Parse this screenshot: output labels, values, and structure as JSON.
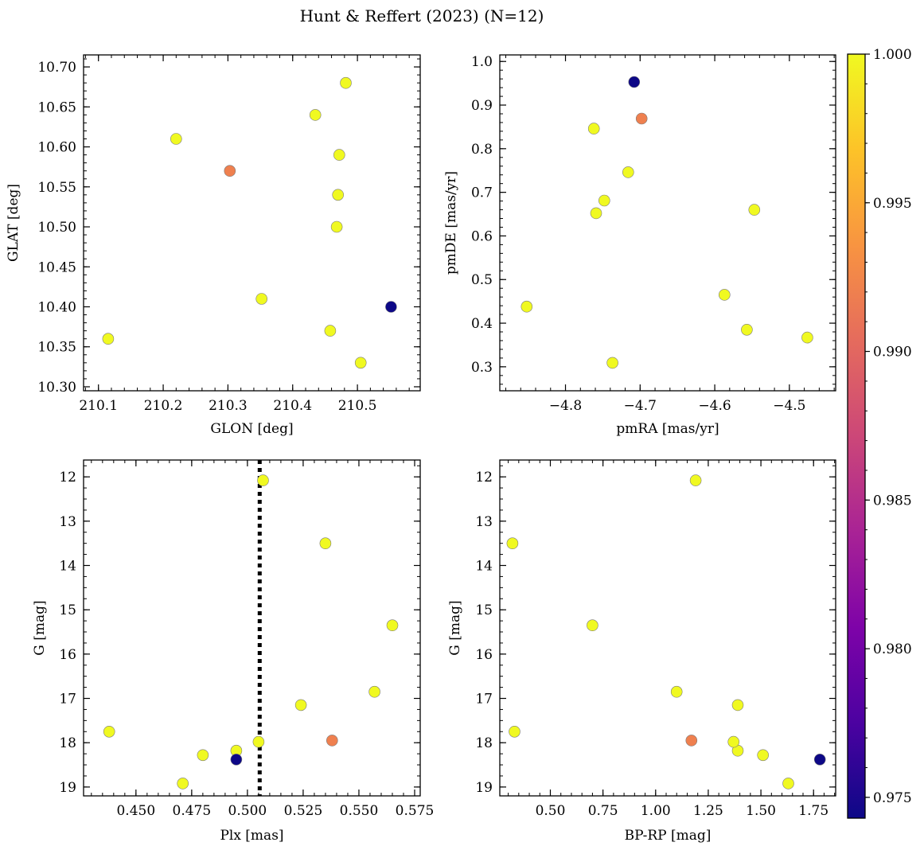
{
  "figure": {
    "title": "Hunt & Reffert (2023) (N=12)"
  },
  "colormap": {
    "name": "plasma",
    "min": 0.9743,
    "max": 1.0,
    "ticks": [
      0.975,
      0.98,
      0.985,
      0.99,
      0.995,
      1.0
    ],
    "tick_labels": [
      "0.975",
      "0.980",
      "0.985",
      "0.990",
      "0.995",
      "1.000"
    ]
  },
  "stars": [
    {
      "glon": 210.115,
      "glat": 10.36,
      "pmra": -4.852,
      "pmde": 0.438,
      "plx": 0.438,
      "g": 17.75,
      "bprp": 0.33,
      "prob": 1.0
    },
    {
      "glon": 210.22,
      "glat": 10.61,
      "pmra": -4.762,
      "pmde": 0.846,
      "plx": 0.565,
      "g": 15.35,
      "bprp": 0.7,
      "prob": 1.0
    },
    {
      "glon": 210.303,
      "glat": 10.57,
      "pmra": -4.698,
      "pmde": 0.869,
      "plx": 0.538,
      "g": 17.95,
      "bprp": 1.17,
      "prob": 0.992
    },
    {
      "glon": 210.352,
      "glat": 10.41,
      "pmra": -4.737,
      "pmde": 0.309,
      "plx": 0.471,
      "g": 18.92,
      "bprp": 1.63,
      "prob": 1.0
    },
    {
      "glon": 210.435,
      "glat": 10.64,
      "pmra": -4.716,
      "pmde": 0.746,
      "plx": 0.507,
      "g": 12.08,
      "bprp": 1.19,
      "prob": 1.0
    },
    {
      "glon": 210.458,
      "glat": 10.37,
      "pmra": -4.557,
      "pmde": 0.385,
      "plx": 0.495,
      "g": 18.18,
      "bprp": 1.39,
      "prob": 1.0
    },
    {
      "glon": 210.468,
      "glat": 10.5,
      "pmra": -4.759,
      "pmde": 0.652,
      "plx": 0.524,
      "g": 17.15,
      "bprp": 1.39,
      "prob": 1.0
    },
    {
      "glon": 210.47,
      "glat": 10.54,
      "pmra": -4.748,
      "pmde": 0.681,
      "plx": 0.505,
      "g": 17.98,
      "bprp": 1.37,
      "prob": 1.0
    },
    {
      "glon": 210.472,
      "glat": 10.59,
      "pmra": -4.587,
      "pmde": 0.465,
      "plx": 0.557,
      "g": 16.85,
      "bprp": 1.1,
      "prob": 1.0
    },
    {
      "glon": 210.482,
      "glat": 10.68,
      "pmra": -4.547,
      "pmde": 0.66,
      "plx": 0.535,
      "g": 13.5,
      "bprp": 0.32,
      "prob": 1.0
    },
    {
      "glon": 210.505,
      "glat": 10.33,
      "pmra": -4.476,
      "pmde": 0.367,
      "plx": 0.48,
      "g": 18.28,
      "bprp": 1.51,
      "prob": 1.0
    },
    {
      "glon": 210.552,
      "glat": 10.4,
      "pmra": -4.708,
      "pmde": 0.953,
      "plx": 0.495,
      "g": 18.38,
      "bprp": 1.78,
      "prob": 0.9743
    }
  ],
  "chart_data": [
    {
      "type": "scatter",
      "name": "position",
      "xkey": "glon",
      "ykey": "glat",
      "xlabel": "GLON [deg]",
      "ylabel": "GLAT [deg]",
      "xlim": [
        210.077,
        210.597
      ],
      "ylim": [
        10.295,
        10.715
      ],
      "yinvert": false,
      "xticks": [
        210.1,
        210.2,
        210.3,
        210.4,
        210.5
      ],
      "xtick_labels": [
        "210.1",
        "210.2",
        "210.3",
        "210.4",
        "210.5"
      ],
      "xminor": 0.02,
      "yticks": [
        10.3,
        10.35,
        10.4,
        10.45,
        10.5,
        10.55,
        10.6,
        10.65,
        10.7
      ],
      "ytick_labels": [
        "10.30",
        "10.35",
        "10.40",
        "10.45",
        "10.50",
        "10.55",
        "10.60",
        "10.65",
        "10.70"
      ],
      "yminor": 0.01
    },
    {
      "type": "scatter",
      "name": "proper-motion",
      "xkey": "pmra",
      "ykey": "pmde",
      "xlabel": "pmRA [mas/yr]",
      "ylabel": "pmDE [mas/yr]",
      "xlim": [
        -4.888,
        -4.438
      ],
      "ylim": [
        0.245,
        1.015
      ],
      "yinvert": false,
      "xticks": [
        -4.8,
        -4.7,
        -4.6,
        -4.5
      ],
      "xtick_labels": [
        "−4.8",
        "−4.7",
        "−4.6",
        "−4.5"
      ],
      "xminor": 0.02,
      "yticks": [
        0.3,
        0.4,
        0.5,
        0.6,
        0.7,
        0.8,
        0.9,
        1.0
      ],
      "ytick_labels": [
        "0.3",
        "0.4",
        "0.5",
        "0.6",
        "0.7",
        "0.8",
        "0.9",
        "1.0"
      ],
      "yminor": 0.02
    },
    {
      "type": "scatter",
      "name": "parallax-magnitude",
      "xkey": "plx",
      "ykey": "g",
      "xlabel": "Plx [mas]",
      "ylabel": "G [mag]",
      "xlim": [
        0.4265,
        0.5775
      ],
      "ylim": [
        11.62,
        19.2
      ],
      "yinvert": true,
      "xticks": [
        0.45,
        0.475,
        0.5,
        0.525,
        0.55,
        0.575
      ],
      "xtick_labels": [
        "0.450",
        "0.475",
        "0.500",
        "0.525",
        "0.550",
        "0.575"
      ],
      "xminor": 0.005,
      "yticks": [
        12,
        13,
        14,
        15,
        16,
        17,
        18,
        19
      ],
      "ytick_labels": [
        "12",
        "13",
        "14",
        "15",
        "16",
        "17",
        "18",
        "19"
      ],
      "yminor": 0.25,
      "vline": {
        "x": 0.5055,
        "style": "dotted"
      }
    },
    {
      "type": "scatter",
      "name": "color-magnitude",
      "xkey": "bprp",
      "ykey": "g",
      "xlabel": "BP-RP [mag]",
      "ylabel": "G [mag]",
      "xlim": [
        0.26,
        1.855
      ],
      "ylim": [
        11.62,
        19.2
      ],
      "yinvert": true,
      "xticks": [
        0.5,
        0.75,
        1.0,
        1.25,
        1.5,
        1.75
      ],
      "xtick_labels": [
        "0.50",
        "0.75",
        "1.00",
        "1.25",
        "1.50",
        "1.75"
      ],
      "xminor": 0.05,
      "yticks": [
        12,
        13,
        14,
        15,
        16,
        17,
        18,
        19
      ],
      "ytick_labels": [
        "12",
        "13",
        "14",
        "15",
        "16",
        "17",
        "18",
        "19"
      ],
      "yminor": 0.25
    }
  ]
}
